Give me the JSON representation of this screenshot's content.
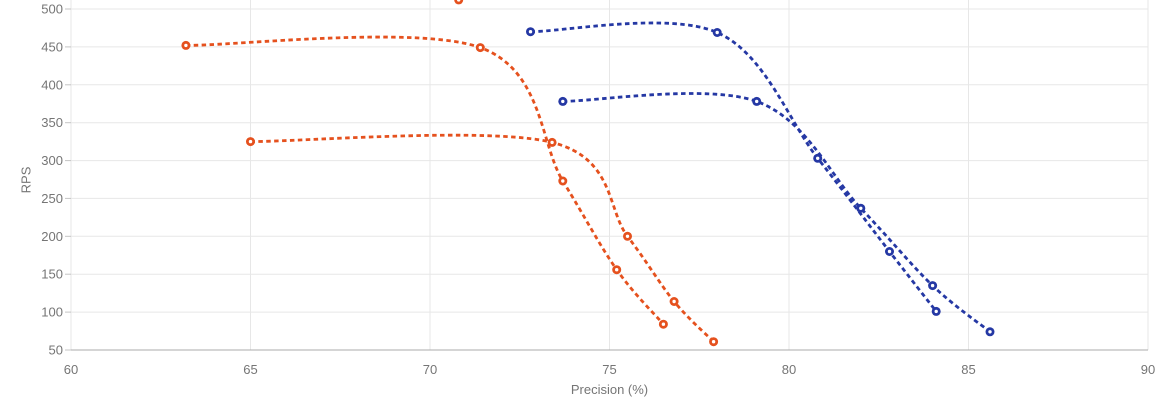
{
  "page": {
    "background": "#ffffff"
  },
  "chart_data": {
    "type": "line",
    "title": "",
    "xlabel": "Precision (%)",
    "ylabel": "RPS",
    "xlim": [
      60,
      90
    ],
    "ylim": [
      50,
      500
    ],
    "x_ticks": [
      60,
      65,
      70,
      75,
      80,
      85,
      90
    ],
    "y_ticks": [
      50,
      100,
      150,
      200,
      250,
      300,
      350,
      400,
      450,
      500
    ],
    "grid": true,
    "legend_position": "none",
    "line_style": "dashed",
    "marker": "open-circle",
    "style": {
      "orange": "#E5511E",
      "blue": "#2538A4",
      "grid_color": "#e7e7e7",
      "axis_line_color": "#ababab",
      "tick_mark_color": "#c4c4c4",
      "tick_label_color": "#757575",
      "axis_title_color": "#757575",
      "background": "#ffffff"
    },
    "series": [
      {
        "name": "orange-curve-1",
        "color": "#E5511E",
        "draw_line": true,
        "points": [
          [
            63.2,
            452
          ],
          [
            71.4,
            449
          ],
          [
            73.7,
            273
          ],
          [
            75.2,
            156
          ],
          [
            76.5,
            84
          ]
        ]
      },
      {
        "name": "orange-curve-2",
        "color": "#E5511E",
        "draw_line": true,
        "points": [
          [
            65.0,
            325
          ],
          [
            73.4,
            324
          ],
          [
            75.5,
            200
          ],
          [
            76.8,
            114
          ],
          [
            77.9,
            61
          ]
        ]
      },
      {
        "name": "blue-curve-1",
        "color": "#2538A4",
        "draw_line": true,
        "points": [
          [
            72.8,
            470
          ],
          [
            78.0,
            469
          ],
          [
            80.8,
            303
          ],
          [
            82.8,
            180
          ],
          [
            84.1,
            101
          ]
        ]
      },
      {
        "name": "blue-curve-2",
        "color": "#2538A4",
        "draw_line": true,
        "points": [
          [
            73.7,
            378
          ],
          [
            79.1,
            378
          ],
          [
            82.0,
            237
          ],
          [
            84.0,
            135
          ],
          [
            85.6,
            74
          ]
        ]
      },
      {
        "name": "orange-point-clipped-at-top",
        "color": "#E5511E",
        "draw_line": false,
        "points": [
          [
            70.8,
            512
          ]
        ]
      }
    ]
  }
}
